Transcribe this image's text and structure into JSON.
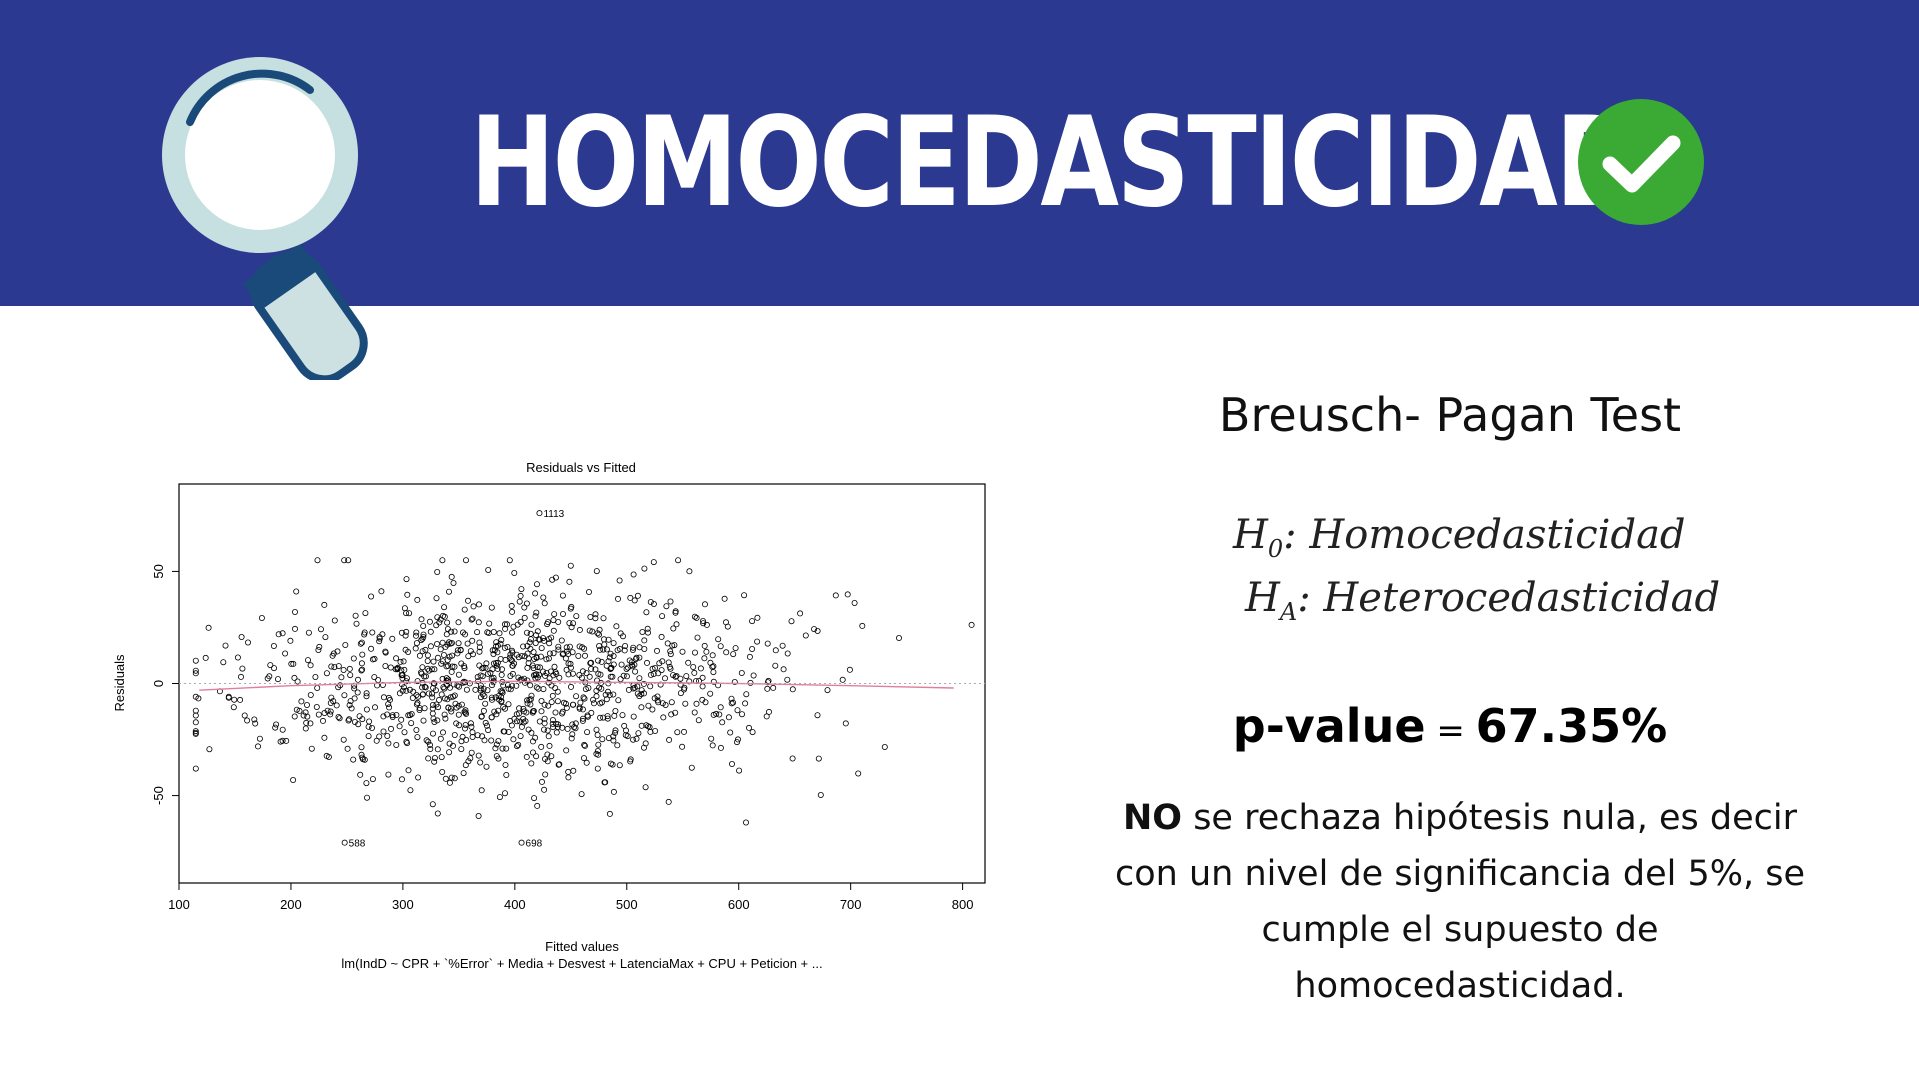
{
  "banner": {
    "title": "HOMOCEDASTICIDAD",
    "bg_color": "#2b3990",
    "check_color": "#3aaa35"
  },
  "icons": {
    "magnifier": "magnifying-glass-icon",
    "check": "check-circle-icon"
  },
  "test": {
    "title": "Breusch- Pagan Test",
    "h0_symbol": "H",
    "h0_sub": "0",
    "h0_text": ": Homocedasticidad",
    "ha_symbol": "H",
    "ha_sub": "A",
    "ha_text": ": Heterocedasticidad",
    "pvalue_label": "p-value",
    "pvalue_eq": " = ",
    "pvalue_value": "67.35%",
    "conclusion_bold": "NO",
    "conclusion_rest": " se rechaza hipótesis nula, es decir con un nivel de significancia del 5%, se cumple el supuesto de homocedasticidad."
  },
  "chart_data": {
    "type": "scatter",
    "title": "Residuals vs Fitted",
    "xlabel": "Fitted values",
    "ylabel": "Residuals",
    "subtitle": "lm(IndD ~ CPR + `%Error` + Media + Desvest + LatenciaMax + CPU + Peticion + ...",
    "xlim": [
      100,
      820
    ],
    "ylim": [
      -89,
      89
    ],
    "xticks": [
      "100",
      "200",
      "300",
      "400",
      "500",
      "600",
      "700",
      "800"
    ],
    "xtick_values": [
      100,
      200,
      300,
      400,
      500,
      600,
      700,
      800
    ],
    "yticks": [
      "-50",
      "0",
      "50"
    ],
    "ytick_values": [
      -50,
      0,
      50
    ],
    "grid": false,
    "point_color": "#000000",
    "smoother_color": "#e07f9a",
    "labeled_points": [
      {
        "label": "1113",
        "x": 422,
        "y": 76
      },
      {
        "label": "588",
        "x": 248,
        "y": -71
      },
      {
        "label": "698",
        "x": 406,
        "y": -71
      }
    ],
    "smoother": {
      "x": [
        118,
        200,
        300,
        400,
        500,
        600,
        700,
        792
      ],
      "y": [
        -3,
        -1,
        0.5,
        1,
        0.5,
        0,
        -1,
        -2
      ]
    },
    "x_center": 400,
    "x_spread": 120,
    "y_spread": 21,
    "n_points": 1150
  }
}
